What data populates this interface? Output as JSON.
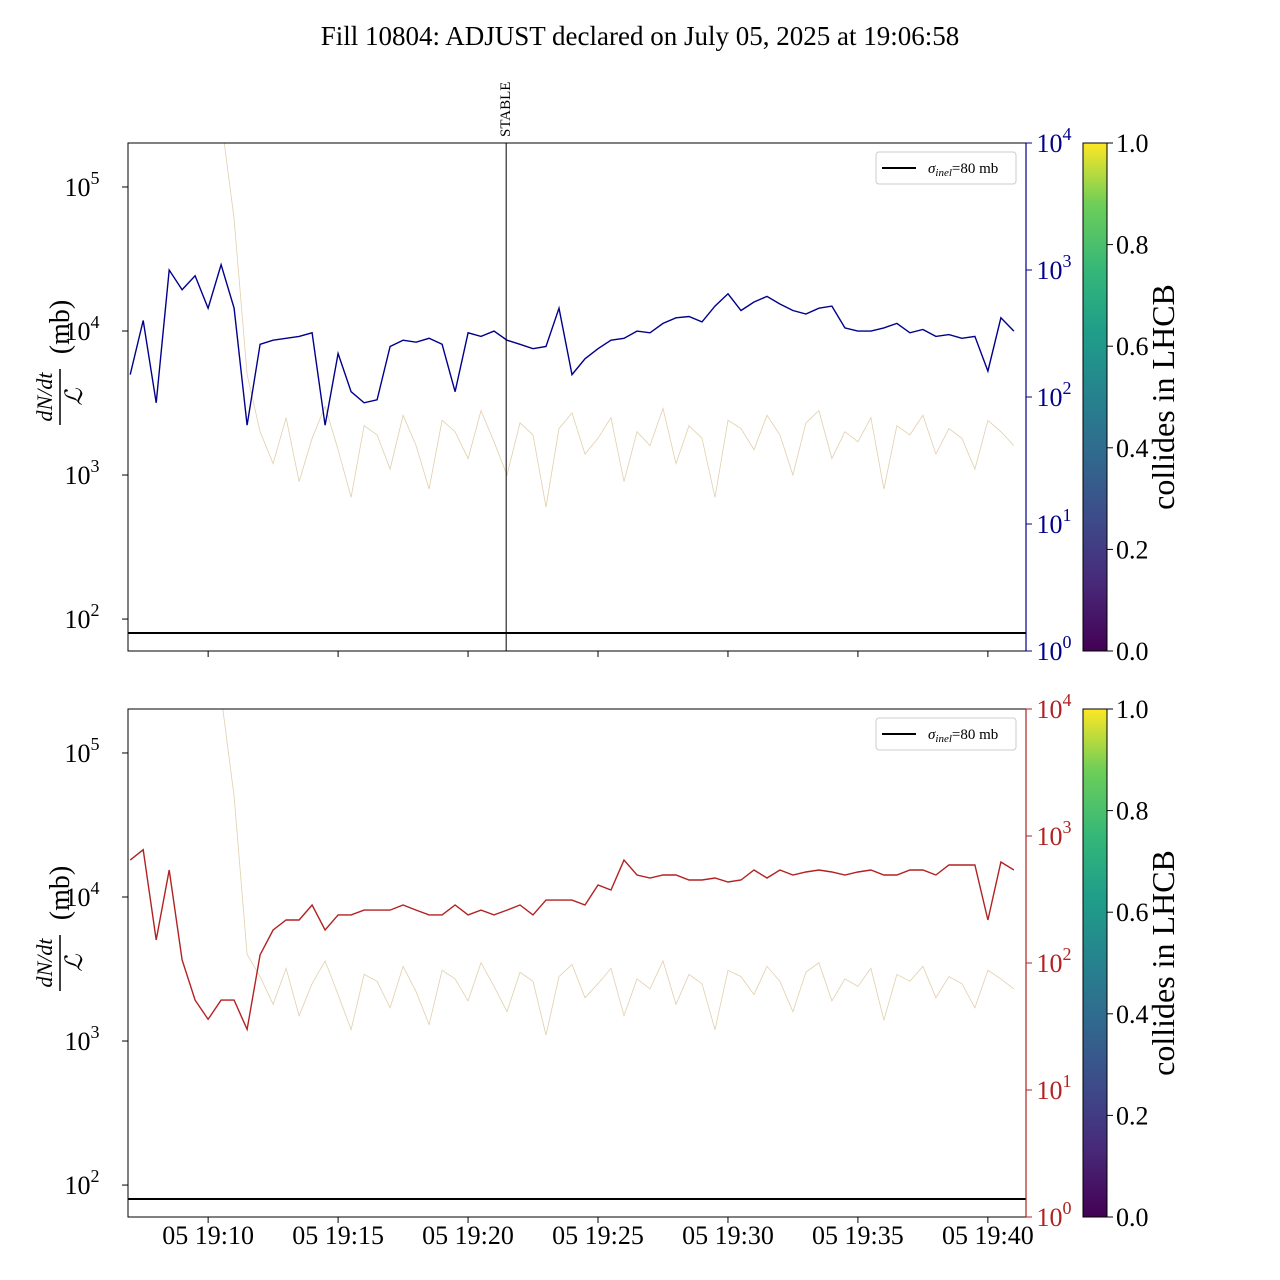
{
  "title": "Fill 10804: ADJUST declared on July 05, 2025 at 19:06:58",
  "chart_data": [
    {
      "type": "line",
      "log_y": true,
      "log_y2": true,
      "legend": "upper right",
      "xlim": [
        "19:06:55",
        "19:41:28"
      ],
      "xticks": [
        "19:10:00",
        "19:15:00",
        "19:20:00",
        "19:25:00",
        "19:30:00",
        "19:35:00",
        "19:40:00"
      ],
      "ylabel": {
        "numerator": "dN/dt",
        "denominator": "ℒ",
        "unit": "(mb)"
      },
      "ylim": [
        60,
        202000
      ],
      "yticks": [
        {
          "value": 100,
          "label": "10",
          "power": "2"
        },
        {
          "value": 1000,
          "label": "10",
          "power": "3"
        },
        {
          "value": 10000,
          "label": "10",
          "power": "4"
        },
        {
          "value": 100000,
          "label": "10",
          "power": "5"
        }
      ],
      "y2lim": [
        1,
        10000
      ],
      "y2ticks": [
        {
          "value": 1,
          "label": "10",
          "power": "0"
        },
        {
          "value": 10,
          "label": "10",
          "power": "1"
        },
        {
          "value": 100,
          "label": "10",
          "power": "2"
        },
        {
          "value": 1000,
          "label": "10",
          "power": "3"
        },
        {
          "value": 10000,
          "label": "10",
          "power": "4"
        }
      ],
      "reference": {
        "value": 80,
        "symbol": "σ",
        "subscript": "inel",
        "label": "=80 mb",
        "color": "#000000"
      },
      "annotation": {
        "x": "19:21:28",
        "text": "STABLE"
      },
      "x": [
        "19:07:00",
        "19:07:30",
        "19:08:00",
        "19:08:30",
        "19:09:00",
        "19:09:30",
        "19:10:00",
        "19:10:30",
        "19:11:00",
        "19:11:30",
        "19:12:00",
        "19:12:30",
        "19:13:00",
        "19:13:30",
        "19:14:00",
        "19:14:30",
        "19:15:00",
        "19:15:30",
        "19:16:00",
        "19:16:30",
        "19:17:00",
        "19:17:30",
        "19:18:00",
        "19:18:30",
        "19:19:00",
        "19:19:30",
        "19:20:00",
        "19:20:30",
        "19:21:00",
        "19:21:30",
        "19:22:00",
        "19:22:30",
        "19:23:00",
        "19:23:30",
        "19:24:00",
        "19:24:30",
        "19:25:00",
        "19:25:30",
        "19:26:00",
        "19:26:30",
        "19:27:00",
        "19:27:30",
        "19:28:00",
        "19:28:30",
        "19:29:00",
        "19:29:30",
        "19:30:00",
        "19:30:30",
        "19:31:00",
        "19:31:30",
        "19:32:00",
        "19:32:30",
        "19:33:00",
        "19:33:30",
        "19:34:00",
        "19:34:30",
        "19:35:00",
        "19:35:30",
        "19:36:00",
        "19:36:30",
        "19:37:00",
        "19:37:30",
        "19:38:00",
        "19:38:30",
        "19:39:00",
        "19:39:30",
        "19:40:00",
        "19:40:30",
        "19:41:00"
      ],
      "series": [
        {
          "color": "#c8a868",
          "values": [
            null,
            null,
            null,
            null,
            null,
            null,
            null,
            300000,
            60000,
            5000,
            2000,
            1200,
            2500,
            900,
            1800,
            3000,
            1500,
            700,
            2200,
            1900,
            1100,
            2600,
            1600,
            800,
            2400,
            2000,
            1300,
            2800,
            1700,
            1000,
            2300,
            1900,
            600,
            2100,
            2700,
            1400,
            1800,
            2500,
            900,
            2000,
            1600,
            2900,
            1200,
            2200,
            1800,
            700,
            2400,
            2100,
            1500,
            2600,
            1900,
            1000,
            2300,
            2800,
            1300,
            2000,
            1700,
            2500,
            800,
            2200,
            1900,
            2600,
            1400,
            2100,
            1800,
            1100,
            2400,
            2000,
            1600
          ]
        },
        {
          "color": "#00008b",
          "axis": "y2",
          "values": [
            150,
            400,
            90,
            1000,
            700,
            900,
            500,
            1100,
            500,
            60,
            260,
            280,
            290,
            300,
            320,
            60,
            220,
            110,
            90,
            95,
            250,
            280,
            270,
            290,
            260,
            110,
            320,
            300,
            330,
            280,
            260,
            240,
            250,
            500,
            150,
            200,
            240,
            280,
            290,
            330,
            320,
            380,
            420,
            430,
            390,
            520,
            650,
            480,
            560,
            620,
            540,
            480,
            450,
            500,
            520,
            350,
            330,
            330,
            350,
            380,
            320,
            340,
            300,
            310,
            290,
            300,
            160,
            420,
            330
          ]
        }
      ],
      "colorbar": {
        "label": "collides in LHCB",
        "lim": [
          0,
          1
        ],
        "ticks": [
          {
            "value": 0,
            "label": "0.0"
          },
          {
            "value": 0.2,
            "label": "0.2"
          },
          {
            "value": 0.4,
            "label": "0.4"
          },
          {
            "value": 0.6,
            "label": "0.6"
          },
          {
            "value": 0.8,
            "label": "0.8"
          },
          {
            "value": 1,
            "label": "1.0"
          }
        ]
      }
    },
    {
      "type": "line",
      "log_y": true,
      "log_y2": true,
      "legend": "upper right",
      "xlim": [
        "19:06:55",
        "19:41:28"
      ],
      "xticks": [
        {
          "value": "19:10:00",
          "label": "05 19:10"
        },
        {
          "value": "19:15:00",
          "label": "05 19:15"
        },
        {
          "value": "19:20:00",
          "label": "05 19:20"
        },
        {
          "value": "19:25:00",
          "label": "05 19:25"
        },
        {
          "value": "19:30:00",
          "label": "05 19:30"
        },
        {
          "value": "19:35:00",
          "label": "05 19:35"
        },
        {
          "value": "19:40:00",
          "label": "05 19:40"
        }
      ],
      "ylabel": {
        "numerator": "dN/dt",
        "denominator": "ℒ",
        "unit": "(mb)"
      },
      "ylim": [
        60,
        202000
      ],
      "yticks": [
        {
          "value": 100,
          "label": "10",
          "power": "2"
        },
        {
          "value": 1000,
          "label": "10",
          "power": "3"
        },
        {
          "value": 10000,
          "label": "10",
          "power": "4"
        },
        {
          "value": 100000,
          "label": "10",
          "power": "5"
        }
      ],
      "y2lim": [
        1,
        10000
      ],
      "y2ticks": [
        {
          "value": 1,
          "label": "10",
          "power": "0"
        },
        {
          "value": 10,
          "label": "10",
          "power": "1"
        },
        {
          "value": 100,
          "label": "10",
          "power": "2"
        },
        {
          "value": 1000,
          "label": "10",
          "power": "3"
        },
        {
          "value": 10000,
          "label": "10",
          "power": "4"
        }
      ],
      "reference": {
        "value": 80,
        "symbol": "σ",
        "subscript": "inel",
        "label": "=80 mb",
        "color": "#000000"
      },
      "x": [
        "19:07:00",
        "19:07:30",
        "19:08:00",
        "19:08:30",
        "19:09:00",
        "19:09:30",
        "19:10:00",
        "19:10:30",
        "19:11:00",
        "19:11:30",
        "19:12:00",
        "19:12:30",
        "19:13:00",
        "19:13:30",
        "19:14:00",
        "19:14:30",
        "19:15:00",
        "19:15:30",
        "19:16:00",
        "19:16:30",
        "19:17:00",
        "19:17:30",
        "19:18:00",
        "19:18:30",
        "19:19:00",
        "19:19:30",
        "19:20:00",
        "19:20:30",
        "19:21:00",
        "19:21:30",
        "19:22:00",
        "19:22:30",
        "19:23:00",
        "19:23:30",
        "19:24:00",
        "19:24:30",
        "19:25:00",
        "19:25:30",
        "19:26:00",
        "19:26:30",
        "19:27:00",
        "19:27:30",
        "19:28:00",
        "19:28:30",
        "19:29:00",
        "19:29:30",
        "19:30:00",
        "19:30:30",
        "19:31:00",
        "19:31:30",
        "19:32:00",
        "19:32:30",
        "19:33:00",
        "19:33:30",
        "19:34:00",
        "19:34:30",
        "19:35:00",
        "19:35:30",
        "19:36:00",
        "19:36:30",
        "19:37:00",
        "19:37:30",
        "19:38:00",
        "19:38:30",
        "19:39:00",
        "19:39:30",
        "19:40:00",
        "19:40:30",
        "19:41:00"
      ],
      "series": [
        {
          "color": "#c8a868",
          "values": [
            null,
            null,
            null,
            null,
            null,
            null,
            null,
            250000,
            50000,
            4000,
            2800,
            1800,
            3200,
            1500,
            2500,
            3600,
            2100,
            1200,
            2900,
            2600,
            1700,
            3300,
            2200,
            1300,
            3100,
            2700,
            1900,
            3500,
            2400,
            1600,
            3000,
            2600,
            1100,
            2800,
            3400,
            2000,
            2500,
            3200,
            1500,
            2700,
            2300,
            3600,
            1800,
            2900,
            2500,
            1200,
            3100,
            2800,
            2100,
            3300,
            2600,
            1600,
            3000,
            3500,
            1900,
            2700,
            2400,
            3200,
            1400,
            2900,
            2600,
            3300,
            2000,
            2800,
            2500,
            1700,
            3100,
            2700,
            2300
          ]
        },
        {
          "color": "#b22222",
          "axis": "y2",
          "values": [
            646,
            780,
            152,
            540,
            106,
            51,
            36,
            51,
            51,
            30,
            116,
            182,
            218,
            218,
            286,
            182,
            239,
            239,
            261,
            261,
            261,
            286,
            261,
            239,
            239,
            286,
            239,
            261,
            239,
            261,
            286,
            239,
            313,
            313,
            313,
            286,
            411,
            376,
            646,
            493,
            467,
            493,
            493,
            450,
            450,
            467,
            434,
            450,
            540,
            467,
            540,
            493,
            521,
            540,
            521,
            493,
            521,
            540,
            493,
            493,
            540,
            540,
            493,
            591,
            591,
            591,
            218,
            624,
            540
          ]
        }
      ],
      "colorbar": {
        "label": "collides in LHCB",
        "lim": [
          0,
          1
        ],
        "ticks": [
          {
            "value": 0,
            "label": "0.0"
          },
          {
            "value": 0.2,
            "label": "0.2"
          },
          {
            "value": 0.4,
            "label": "0.4"
          },
          {
            "value": 0.6,
            "label": "0.6"
          },
          {
            "value": 0.8,
            "label": "0.8"
          },
          {
            "value": 1,
            "label": "1.0"
          }
        ]
      }
    }
  ]
}
